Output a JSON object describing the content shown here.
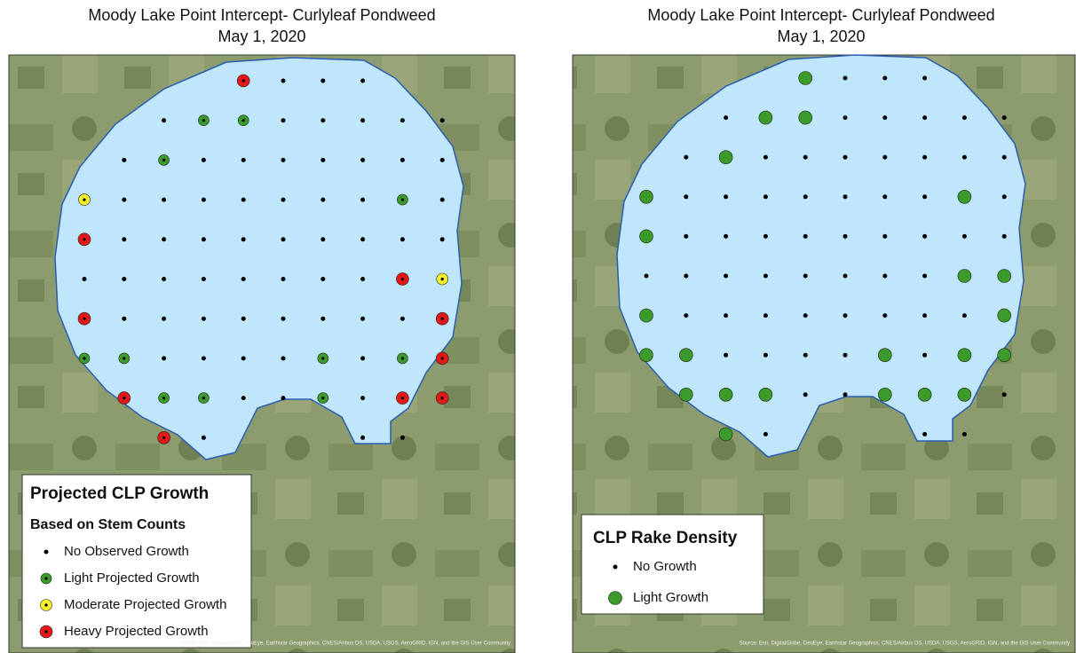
{
  "maps": [
    {
      "title": [
        "Moody Lake Point Intercept- Curlyleaf Pondweed",
        "May 1, 2020"
      ],
      "legend": {
        "title": "Projected CLP Growth",
        "subtitle": "Based on Stem Counts",
        "items": [
          "No Observed Growth",
          "Light Projected Growth",
          "Moderate Projected Growth",
          "Heavy Projected Growth"
        ]
      },
      "source": "Source: Esri, DigitalGlobe, GeoEye, Earthstar Geographics, CNES/Airbus DS, USDA, USGS, AeroGRID, IGN, and the GIS User Community"
    },
    {
      "title": [
        "Moody Lake Point Intercept- Curlyleaf Pondweed",
        "May 1, 2020"
      ],
      "legend": {
        "title": "CLP Rake Density",
        "items": [
          "No Growth",
          "Light Growth"
        ]
      },
      "source": "Source: Esri, DigitalGlobe, GeoEye, Earthstar Geographics, CNES/Airbus DS, USDA, USGS, AeroGRID, IGN, and the GIS User Community"
    }
  ]
}
